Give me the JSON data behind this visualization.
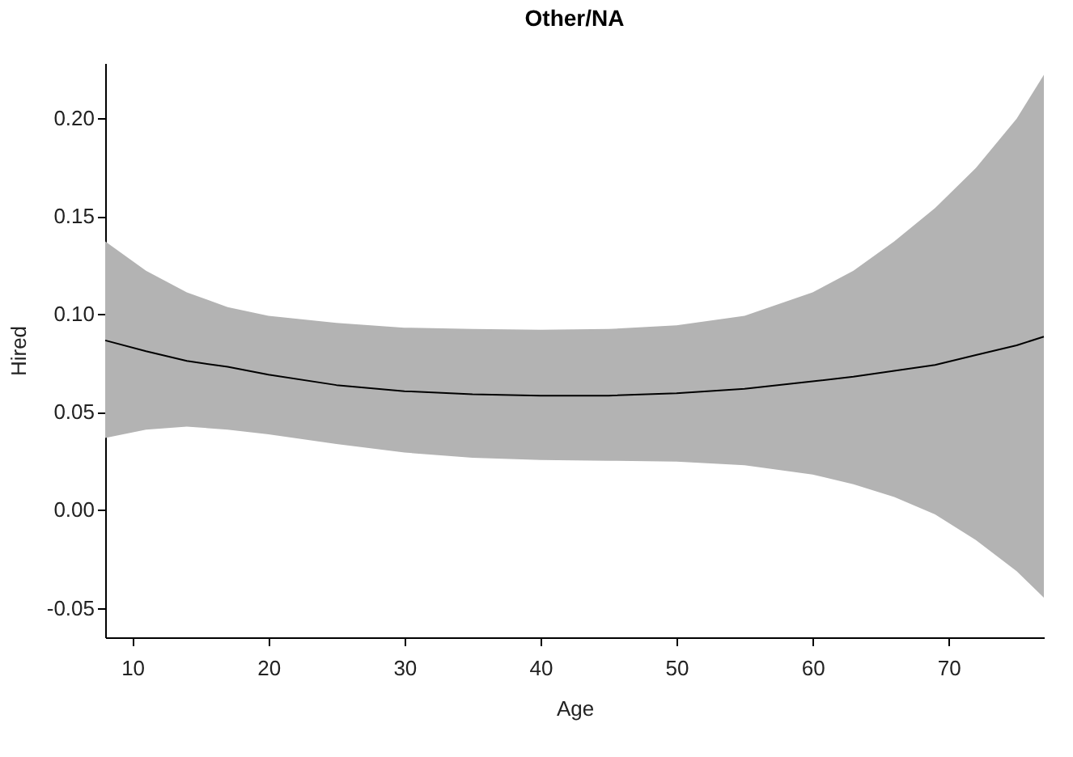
{
  "chart_data": {
    "type": "line",
    "title": "Other/NA",
    "xlabel": "Age",
    "ylabel": "Hired",
    "x": [
      8,
      11,
      14,
      17,
      20,
      25,
      30,
      35,
      40,
      45,
      50,
      55,
      60,
      63,
      66,
      69,
      72,
      75,
      77
    ],
    "series": [
      {
        "color": "#000000",
        "values": [
          0.0865,
          0.081,
          0.076,
          0.073,
          0.069,
          0.0637,
          0.0606,
          0.059,
          0.0583,
          0.0583,
          0.0595,
          0.0618,
          0.0656,
          0.068,
          0.071,
          0.074,
          0.079,
          0.084,
          0.0884
        ],
        "lower": [
          0.0367,
          0.041,
          0.0425,
          0.041,
          0.0386,
          0.0336,
          0.0293,
          0.0266,
          0.0255,
          0.0251,
          0.0247,
          0.0228,
          0.0181,
          0.0131,
          0.0066,
          -0.0023,
          -0.0154,
          -0.0313,
          -0.0448
        ],
        "upper": [
          0.137,
          0.122,
          0.111,
          0.1035,
          0.099,
          0.0954,
          0.093,
          0.0923,
          0.0919,
          0.0923,
          0.0942,
          0.099,
          0.111,
          0.122,
          0.137,
          0.154,
          0.1745,
          0.1996,
          0.222
        ]
      }
    ],
    "xlim": [
      8,
      77
    ],
    "xticks": [
      10,
      20,
      30,
      40,
      50,
      60,
      70
    ],
    "ylim": [
      -0.065,
      0.228
    ],
    "yticks": [
      {
        "value": -0.05,
        "label": "-0.05"
      },
      {
        "value": 0,
        "label": "0.00"
      },
      {
        "value": 0.05,
        "label": "0.05"
      },
      {
        "value": 0.1,
        "label": "0.10"
      },
      {
        "value": 0.15,
        "label": "0.15"
      },
      {
        "value": 0.2,
        "label": "0.20"
      }
    ],
    "grid": false,
    "line_style": "solid",
    "marker": "none"
  }
}
